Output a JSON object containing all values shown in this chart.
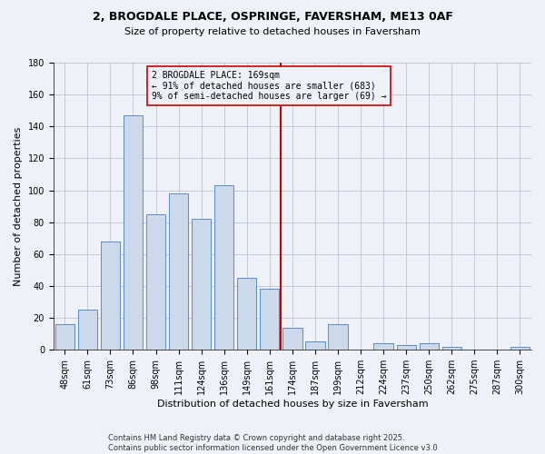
{
  "title_line1": "2, BROGDALE PLACE, OSPRINGE, FAVERSHAM, ME13 0AF",
  "title_line2": "Size of property relative to detached houses in Faversham",
  "xlabel": "Distribution of detached houses by size in Faversham",
  "ylabel": "Number of detached properties",
  "bins": [
    "48sqm",
    "61sqm",
    "73sqm",
    "86sqm",
    "98sqm",
    "111sqm",
    "124sqm",
    "136sqm",
    "149sqm",
    "161sqm",
    "174sqm",
    "187sqm",
    "199sqm",
    "212sqm",
    "224sqm",
    "237sqm",
    "250sqm",
    "262sqm",
    "275sqm",
    "287sqm",
    "300sqm"
  ],
  "values": [
    16,
    25,
    68,
    147,
    85,
    98,
    82,
    103,
    45,
    38,
    14,
    5,
    16,
    0,
    4,
    3,
    4,
    2,
    0,
    0,
    2
  ],
  "subject_line_bin_idx": 10,
  "annotation_line1": "2 BROGDALE PLACE: 169sqm",
  "annotation_line2": "← 91% of detached houses are smaller (683)",
  "annotation_line3": "9% of semi-detached houses are larger (69) →",
  "bar_color": "#ccd9ea",
  "bar_edge_color": "#5b8bc9",
  "subject_line_color": "#cc0000",
  "annotation_box_edge": "#cc0000",
  "background_color": "#eef2f8",
  "footer_text": "Contains HM Land Registry data © Crown copyright and database right 2025.\nContains public sector information licensed under the Open Government Licence v3.0",
  "ylim": [
    0,
    180
  ],
  "yticks": [
    0,
    20,
    40,
    60,
    80,
    100,
    120,
    140,
    160,
    180
  ],
  "title1_fontsize": 9,
  "title2_fontsize": 8,
  "tick_fontsize": 7,
  "ylabel_fontsize": 8,
  "xlabel_fontsize": 8
}
